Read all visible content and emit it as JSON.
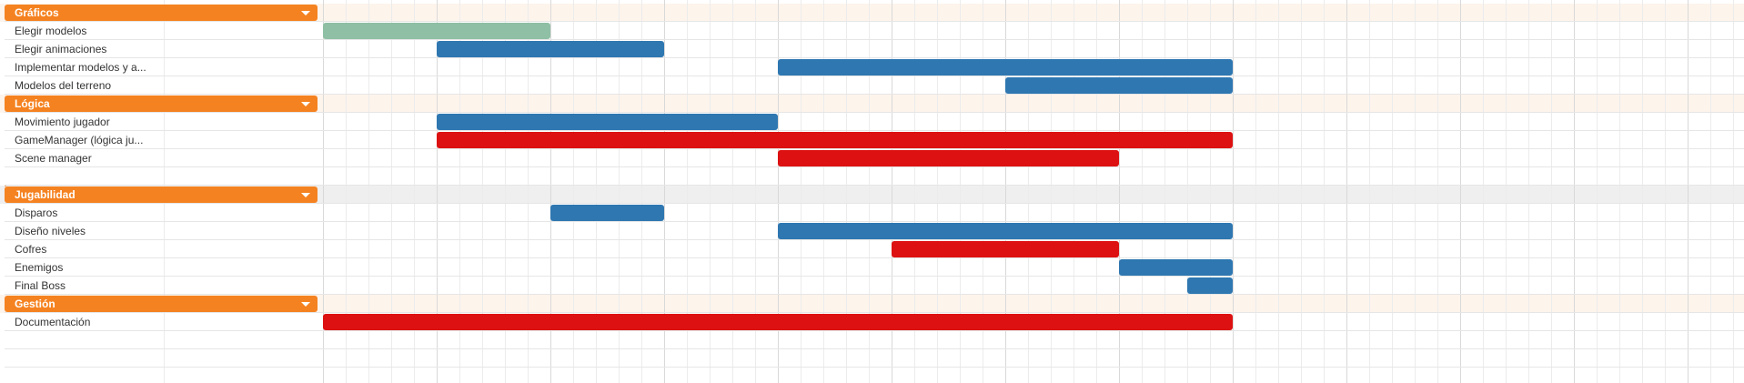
{
  "colors": {
    "group_header": "#f58220",
    "band_light": "#fdf4ec",
    "band_selected": "#efefef",
    "bar_done": "#8fbfa4",
    "bar_progress": "#2e77b1",
    "bar_critical": "#dd1111"
  },
  "timeline": {
    "columns": 30
  },
  "groups": [
    {
      "label": "Gráficos",
      "band": "light",
      "tasks": [
        {
          "label": "Elegir modelos",
          "start": 0,
          "end": 2,
          "status": "done"
        },
        {
          "label": "Elegir animaciones",
          "start": 1,
          "end": 3,
          "status": "progress"
        },
        {
          "label": "Implementar modelos y a...",
          "start": 4,
          "end": 8,
          "status": "progress"
        },
        {
          "label": "Modelos del terreno",
          "start": 6,
          "end": 8,
          "status": "progress"
        }
      ]
    },
    {
      "label": "Lógica",
      "band": "light",
      "tasks": [
        {
          "label": "Movimiento jugador",
          "start": 1,
          "end": 4,
          "status": "progress"
        },
        {
          "label": "GameManager (lógica ju...",
          "start": 1,
          "end": 8,
          "status": "critical"
        },
        {
          "label": "Scene manager",
          "start": 4,
          "end": 7,
          "status": "critical"
        },
        {
          "label": "",
          "start": null,
          "end": null,
          "status": "empty"
        }
      ]
    },
    {
      "label": "Jugabilidad",
      "band": "selected",
      "tasks": [
        {
          "label": "Disparos",
          "start": 2,
          "end": 3,
          "status": "progress"
        },
        {
          "label": "Diseño niveles",
          "start": 4,
          "end": 8,
          "status": "progress"
        },
        {
          "label": "Cofres",
          "start": 5,
          "end": 7,
          "status": "critical"
        },
        {
          "label": "Enemigos",
          "start": 7,
          "end": 8,
          "status": "progress"
        },
        {
          "label": "Final Boss",
          "start": 7.6,
          "end": 8,
          "status": "progress"
        }
      ]
    },
    {
      "label": "Gestión",
      "band": "light",
      "tasks": [
        {
          "label": "Documentación",
          "start": 0,
          "end": 8,
          "status": "critical"
        }
      ]
    }
  ]
}
